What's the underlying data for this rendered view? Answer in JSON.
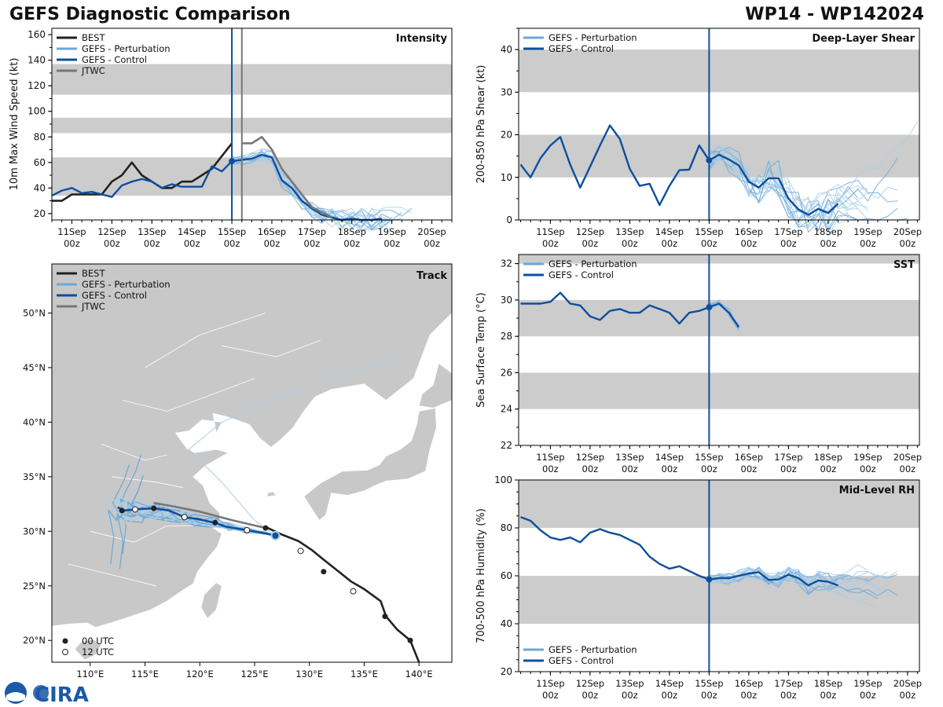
{
  "header": {
    "left_title": "GEFS Diagnostic Comparison",
    "right_title": "WP14 - WP142024"
  },
  "colors": {
    "best": "#222222",
    "perturbation": "#6aa8d8",
    "pert_light": "#a9cde8",
    "control": "#0d4f9e",
    "jtwc": "#777777",
    "band": "#cccccc",
    "land": "#c8c8c8"
  },
  "time_axis": {
    "ticks": [
      "11Sep",
      "12Sep",
      "13Sep",
      "14Sep",
      "15Sep",
      "16Sep",
      "17Sep",
      "18Sep",
      "19Sep",
      "20Sep"
    ],
    "sub": "00z"
  },
  "legend_track": {
    "t00": "00 UTC",
    "t12": "12 UTC"
  },
  "logo_text": "CIRA",
  "chart_data": [
    {
      "id": "intensity",
      "type": "line",
      "title": "Intensity",
      "ylabel": "10m Max Wind Speed (kt)",
      "xlim": [
        -4.5,
        5.5
      ],
      "ylim": [
        15,
        165
      ],
      "yticks": [
        20,
        40,
        60,
        80,
        100,
        120,
        140,
        160
      ],
      "bands": [
        [
          34,
          64
        ],
        [
          83,
          95
        ],
        [
          113,
          137
        ]
      ],
      "vlines": [
        {
          "x": 0,
          "color": "control"
        },
        {
          "x": 0.25,
          "color": "jtwc"
        }
      ],
      "legend": [
        "BEST",
        "GEFS - Perturbation",
        "GEFS - Control",
        "JTWC"
      ],
      "series": [
        {
          "name": "BEST",
          "color": "best",
          "x": [
            -4.5,
            -4.25,
            -4,
            -3.75,
            -3.5,
            -3.25,
            -3,
            -2.75,
            -2.5,
            -2.25,
            -2,
            -1.75,
            -1.5,
            -1.25,
            -1,
            -0.75,
            -0.5,
            -0.25,
            0
          ],
          "y": [
            30,
            30,
            35,
            35,
            35,
            35,
            45,
            50,
            60,
            50,
            45,
            40,
            40,
            45,
            45,
            50,
            55,
            65,
            75
          ]
        },
        {
          "name": "GEFS - Control",
          "color": "control",
          "x": [
            -4.5,
            -4.25,
            -4,
            -3.75,
            -3.5,
            -3.25,
            -3,
            -2.75,
            -2.5,
            -2.25,
            -2,
            -1.75,
            -1.5,
            -1.25,
            -1,
            -0.75,
            -0.5,
            -0.25,
            0,
            0.25,
            0.5,
            0.75,
            1,
            1.25,
            1.5,
            1.75,
            2,
            2.25,
            2.5,
            2.75,
            3,
            3.25,
            3.5,
            3.75
          ],
          "y": [
            34,
            38,
            40,
            36,
            37,
            35,
            33,
            42,
            45,
            47,
            45,
            40,
            43,
            41,
            41,
            41,
            57,
            53,
            61,
            62,
            63,
            66,
            64,
            46,
            40,
            30,
            24,
            19,
            17,
            15,
            16,
            15,
            15,
            16
          ]
        },
        {
          "name": "JTWC",
          "color": "jtwc",
          "x": [
            0.25,
            0.5,
            0.75,
            1,
            1.25,
            1.5,
            1.75,
            2,
            2.5
          ],
          "y": [
            75,
            75,
            80,
            70,
            55,
            45,
            35,
            25,
            17
          ]
        }
      ]
    },
    {
      "id": "shear",
      "type": "line",
      "title": "Deep-Layer Shear",
      "ylabel": "200-850 hPa Shear (kt)",
      "xlim": [
        -4.8,
        5.3
      ],
      "ylim": [
        0,
        45
      ],
      "yticks": [
        0,
        10,
        20,
        30,
        40
      ],
      "bands": [
        [
          10,
          20
        ],
        [
          30,
          40
        ]
      ],
      "vlines": [
        {
          "x": 0,
          "color": "control"
        }
      ],
      "legend": [
        "GEFS - Perturbation",
        "GEFS - Control"
      ],
      "series": [
        {
          "name": "GEFS - Control",
          "color": "control",
          "x": [
            -4.75,
            -4.5,
            -4.25,
            -4,
            -3.75,
            -3.5,
            -3.25,
            -3,
            -2.75,
            -2.5,
            -2.25,
            -2,
            -1.75,
            -1.5,
            -1.25,
            -1,
            -0.75,
            -0.5,
            -0.25,
            0,
            0.25,
            0.5,
            0.75,
            1,
            1.25,
            1.5,
            1.75,
            2,
            2.25,
            2.5,
            2.75,
            3,
            3.25
          ],
          "y": [
            13,
            10,
            14.5,
            17.5,
            19.5,
            13,
            7.6,
            12.5,
            17.5,
            22.2,
            19,
            12,
            8,
            8.5,
            3.5,
            8,
            11.7,
            11.8,
            17.5,
            14,
            15.3,
            14.2,
            12.8,
            9,
            7.6,
            9.8,
            9.8,
            5,
            2.5,
            1.2,
            2.6,
            1.6,
            3.8
          ]
        }
      ]
    },
    {
      "id": "sst",
      "type": "line",
      "title": "SST",
      "ylabel": "Sea Surface Temp (°C)",
      "xlim": [
        -4.8,
        5.3
      ],
      "ylim": [
        22,
        32.5
      ],
      "yticks": [
        22,
        24,
        26,
        28,
        30,
        32
      ],
      "bands": [
        [
          24,
          26
        ],
        [
          28,
          30
        ],
        [
          32,
          34
        ]
      ],
      "vlines": [
        {
          "x": 0,
          "color": "control"
        }
      ],
      "legend": [
        "GEFS - Perturbation",
        "GEFS - Control"
      ],
      "series": [
        {
          "name": "GEFS - Control",
          "color": "control",
          "x": [
            -4.75,
            -4.5,
            -4.25,
            -4,
            -3.75,
            -3.5,
            -3.25,
            -3,
            -2.75,
            -2.5,
            -2.25,
            -2,
            -1.75,
            -1.5,
            -1.25,
            -1,
            -0.75,
            -0.5,
            -0.25,
            0,
            0.25,
            0.5,
            0.75
          ],
          "y": [
            29.8,
            29.8,
            29.8,
            29.9,
            30.4,
            29.8,
            29.7,
            29.1,
            28.9,
            29.4,
            29.5,
            29.3,
            29.3,
            29.7,
            29.5,
            29.3,
            28.7,
            29.3,
            29.4,
            29.6,
            29.8,
            29.3,
            28.5
          ]
        }
      ]
    },
    {
      "id": "rh",
      "type": "line",
      "title": "Mid-Level RH",
      "ylabel": "700-500 hPa Humidity (%)",
      "xlim": [
        -4.8,
        5.3
      ],
      "ylim": [
        20,
        100
      ],
      "yticks": [
        20,
        40,
        60,
        80,
        100
      ],
      "bands": [
        [
          40,
          60
        ],
        [
          80,
          100
        ]
      ],
      "vlines": [
        {
          "x": 0,
          "color": "control"
        }
      ],
      "legend": [
        "GEFS - Perturbation",
        "GEFS - Control"
      ],
      "series": [
        {
          "name": "GEFS - Control",
          "color": "control",
          "x": [
            -4.75,
            -4.5,
            -4.25,
            -4,
            -3.75,
            -3.5,
            -3.25,
            -3,
            -2.75,
            -2.5,
            -2.25,
            -2,
            -1.75,
            -1.5,
            -1.25,
            -1,
            -0.75,
            -0.5,
            -0.25,
            0,
            0.25,
            0.5,
            0.75,
            1,
            1.25,
            1.5,
            1.75,
            2,
            2.25,
            2.5,
            2.75,
            3,
            3.25
          ],
          "y": [
            84.5,
            83,
            79,
            76,
            75,
            76,
            74,
            78,
            79.5,
            78,
            77,
            75,
            73,
            68,
            65,
            63,
            64,
            62,
            60,
            58.5,
            59,
            59,
            60,
            61,
            61.5,
            58.3,
            58.5,
            60.5,
            59,
            56,
            58,
            57.5,
            56
          ]
        }
      ]
    },
    {
      "id": "track",
      "type": "scatter",
      "title": "Track",
      "xlim": [
        106.5,
        143
      ],
      "ylim": [
        18,
        54.5
      ],
      "xticks": [
        "110°E",
        "115°E",
        "120°E",
        "125°E",
        "130°E",
        "135°E",
        "140°E"
      ],
      "yticks": [
        "20°N",
        "25°N",
        "30°N",
        "35°N",
        "40°N",
        "45°N",
        "50°N"
      ],
      "legend": [
        "BEST",
        "GEFS - Perturbation",
        "GEFS - Control",
        "JTWC"
      ],
      "series": [
        {
          "name": "BEST",
          "color": "best",
          "lon": [
            140,
            139.2,
            138,
            137,
            136.5,
            135,
            133.8,
            132.3,
            131.3,
            130.2,
            129,
            127.5,
            126.2
          ],
          "lat": [
            18,
            20,
            21,
            22.2,
            23.6,
            24.7,
            25.4,
            26.6,
            27.4,
            28.3,
            29.1,
            29.7,
            30.3
          ]
        },
        {
          "name": "GEFS - Control",
          "color": "control",
          "lon": [
            126.9,
            126,
            124.3,
            122.5,
            121.3,
            119.9,
            118.6,
            117.2,
            115.8,
            114,
            113.1,
            112.5
          ],
          "lat": [
            29.6,
            29.8,
            30.1,
            30.4,
            30.8,
            31.1,
            31.3,
            31.9,
            32.1,
            32,
            31.9,
            32.2
          ]
        },
        {
          "name": "JTWC",
          "color": "jtwc",
          "lon": [
            126,
            123,
            120,
            117.5,
            115.8
          ],
          "lat": [
            30.3,
            31.0,
            31.8,
            32.3,
            32.6
          ]
        }
      ],
      "markers_00": [
        [
          139.2,
          20
        ],
        [
          136.9,
          22.2
        ],
        [
          131.3,
          26.3
        ],
        [
          126,
          30.3
        ],
        [
          121.4,
          30.8
        ],
        [
          115.8,
          32.1
        ],
        [
          112.9,
          31.9
        ]
      ],
      "markers_12": [
        [
          134,
          24.5
        ],
        [
          129.2,
          28.2
        ],
        [
          124.3,
          30.1
        ],
        [
          118.6,
          31.3
        ],
        [
          114.1,
          32
        ]
      ]
    }
  ]
}
